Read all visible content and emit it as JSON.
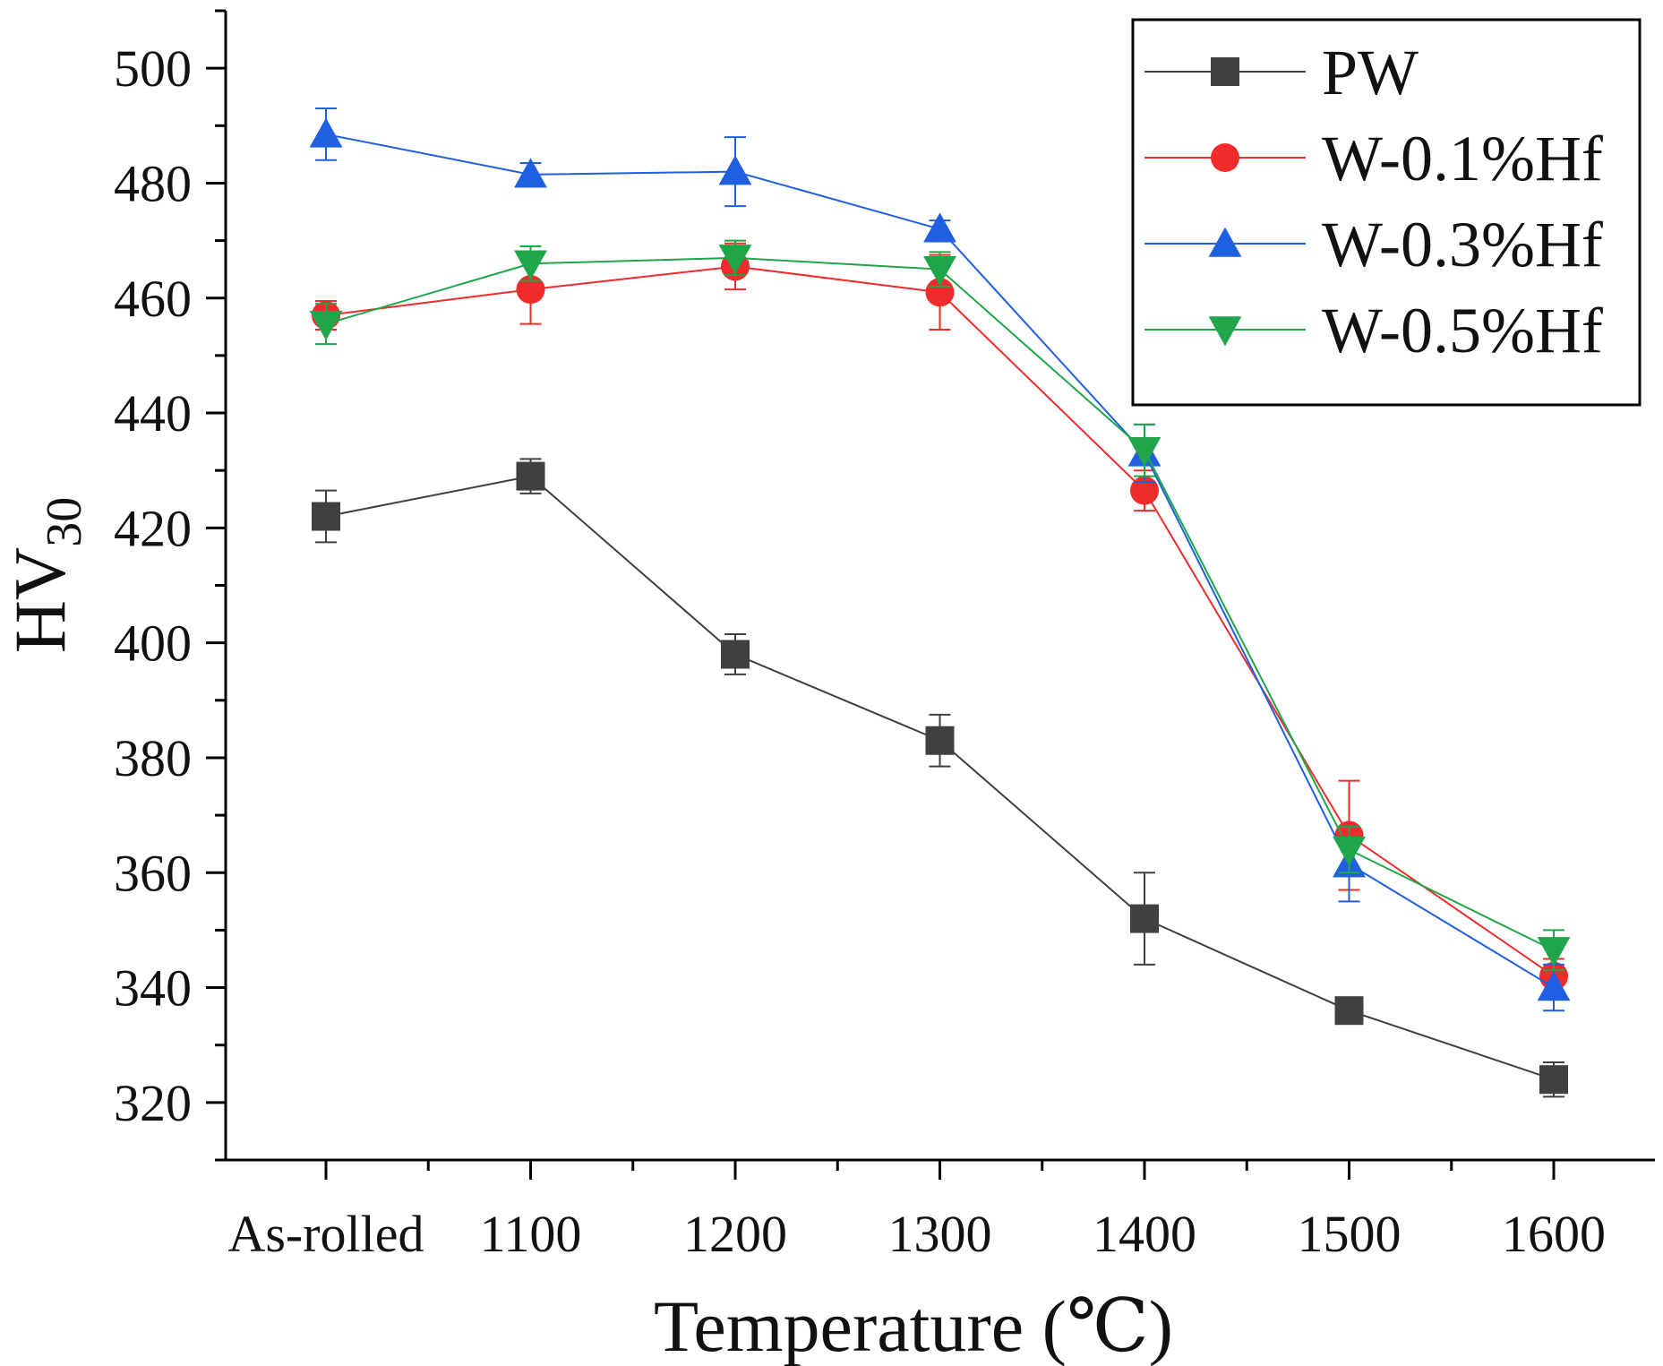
{
  "chart_data": {
    "type": "line",
    "categories": [
      "As-rolled",
      "1100",
      "1200",
      "1300",
      "1400",
      "1500",
      "1600"
    ],
    "xlabel": "Temperature (℃)",
    "ylabel_main": "HV",
    "ylabel_sub": "30",
    "ylim": [
      310,
      510
    ],
    "yticks": [
      320,
      340,
      360,
      380,
      400,
      420,
      440,
      460,
      480,
      500
    ],
    "grid": false,
    "legend_position": "top-right",
    "series": [
      {
        "name": "PW",
        "color": "#404040",
        "marker": "square",
        "values": [
          422,
          429,
          398,
          383,
          352,
          336,
          324
        ],
        "errors": [
          4.5,
          3,
          3.5,
          4.5,
          8,
          1.5,
          3
        ]
      },
      {
        "name": "W-0.1%Hf",
        "color": "#ef2b2b",
        "marker": "circle",
        "values": [
          457,
          461.5,
          465.5,
          461,
          426.5,
          366.5,
          342
        ],
        "errors": [
          2.5,
          6,
          4,
          6.5,
          3.5,
          9.5,
          3
        ]
      },
      {
        "name": "W-0.3%Hf",
        "color": "#1f5fe0",
        "marker": "triangle-up",
        "values": [
          488.5,
          481.5,
          482,
          472,
          433,
          361.5,
          340
        ],
        "errors": [
          4.5,
          2,
          6,
          1.5,
          5,
          6.5,
          4
        ]
      },
      {
        "name": "W-0.5%Hf",
        "color": "#1fa64a",
        "marker": "triangle-down",
        "values": [
          455.5,
          466,
          467,
          465,
          433.5,
          364,
          346.5
        ],
        "errors": [
          3.5,
          3,
          3,
          3,
          4.5,
          4,
          3.5
        ]
      }
    ]
  }
}
